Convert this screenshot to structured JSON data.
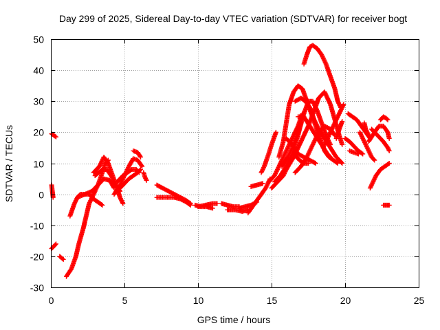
{
  "chart_data": {
    "type": "scatter",
    "title": "Day 299 of 2025, Sidereal Day-to-day VTEC variation (SDTVAR) for receiver bogt",
    "xlabel": "GPS time / hours",
    "ylabel": "SDTVAR / TECUs",
    "xlim": [
      0,
      25
    ],
    "ylim": [
      -30,
      50
    ],
    "xticks": [
      0,
      5,
      10,
      15,
      20,
      25
    ],
    "yticks": [
      -30,
      -20,
      -10,
      0,
      10,
      20,
      30,
      40,
      50
    ],
    "grid": true,
    "marker": "+",
    "color": "#ff0000",
    "tracks": [
      {
        "name": "t01",
        "points": [
          [
            0.05,
            19.5
          ],
          [
            0.35,
            18.5
          ]
        ]
      },
      {
        "name": "t02",
        "points": [
          [
            0.05,
            3
          ],
          [
            0.1,
            1
          ],
          [
            0.15,
            -1
          ]
        ]
      },
      {
        "name": "t03",
        "points": [
          [
            0.05,
            -17.5
          ],
          [
            0.35,
            -16
          ]
        ]
      },
      {
        "name": "t04",
        "points": [
          [
            0.6,
            -20
          ],
          [
            0.85,
            -21
          ]
        ]
      },
      {
        "name": "t05",
        "points": [
          [
            1.05,
            -26.5
          ],
          [
            1.4,
            -24
          ],
          [
            1.7,
            -20
          ],
          [
            1.9,
            -16
          ],
          [
            2.2,
            -11
          ],
          [
            2.4,
            -7
          ],
          [
            2.6,
            -3
          ],
          [
            2.9,
            0
          ],
          [
            3.2,
            3
          ],
          [
            3.5,
            7
          ],
          [
            3.7,
            10
          ],
          [
            3.9,
            11
          ]
        ]
      },
      {
        "name": "t06",
        "points": [
          [
            1.3,
            -7
          ],
          [
            1.6,
            -3
          ],
          [
            1.8,
            -1
          ],
          [
            2.0,
            0
          ],
          [
            2.3,
            0
          ],
          [
            2.6,
            0
          ],
          [
            2.9,
            -1.5
          ],
          [
            3.2,
            -2.5
          ],
          [
            3.5,
            -3.5
          ]
        ]
      },
      {
        "name": "t07",
        "points": [
          [
            1.8,
            -1
          ],
          [
            2.3,
            0
          ],
          [
            2.8,
            1
          ],
          [
            3.2,
            3
          ],
          [
            3.6,
            5
          ],
          [
            4.0,
            4.5
          ],
          [
            4.3,
            2
          ]
        ]
      },
      {
        "name": "t08",
        "points": [
          [
            2.9,
            7
          ],
          [
            3.3,
            9
          ],
          [
            3.6,
            12
          ],
          [
            3.9,
            10
          ],
          [
            4.2,
            6
          ],
          [
            4.5,
            2
          ],
          [
            4.7,
            -1
          ],
          [
            4.9,
            -3
          ]
        ]
      },
      {
        "name": "t09",
        "points": [
          [
            3.0,
            6
          ],
          [
            3.5,
            8
          ],
          [
            3.8,
            8
          ],
          [
            4.1,
            6
          ],
          [
            4.4,
            3
          ],
          [
            4.7,
            1
          ]
        ]
      },
      {
        "name": "t10",
        "points": [
          [
            4.3,
            0
          ],
          [
            4.7,
            3
          ],
          [
            5.0,
            6
          ],
          [
            5.3,
            9
          ],
          [
            5.6,
            11.5
          ],
          [
            5.9,
            11
          ],
          [
            6.2,
            9
          ]
        ]
      },
      {
        "name": "t11",
        "points": [
          [
            4.5,
            4
          ],
          [
            4.9,
            6
          ],
          [
            5.2,
            7
          ],
          [
            5.5,
            8
          ],
          [
            5.8,
            8
          ],
          [
            6.0,
            7
          ]
        ]
      },
      {
        "name": "t12",
        "points": [
          [
            4.7,
            2
          ],
          [
            5.0,
            3.5
          ],
          [
            5.3,
            5
          ],
          [
            5.6,
            6
          ],
          [
            5.9,
            7
          ],
          [
            6.1,
            8
          ]
        ]
      },
      {
        "name": "t13",
        "points": [
          [
            5.6,
            14
          ],
          [
            5.9,
            13.5
          ],
          [
            6.1,
            12
          ]
        ]
      },
      {
        "name": "t14",
        "points": [
          [
            6.3,
            7
          ],
          [
            6.4,
            5.5
          ],
          [
            6.5,
            4.5
          ]
        ]
      },
      {
        "name": "t15",
        "points": [
          [
            7.2,
            3
          ],
          [
            7.6,
            2
          ],
          [
            8.0,
            1
          ],
          [
            8.4,
            0
          ],
          [
            8.8,
            -1
          ],
          [
            9.2,
            -2
          ],
          [
            9.5,
            -3
          ]
        ]
      },
      {
        "name": "t16",
        "points": [
          [
            7.2,
            -1
          ],
          [
            7.6,
            -1
          ],
          [
            8.0,
            -1
          ],
          [
            8.4,
            -1
          ],
          [
            8.8,
            -1.5
          ],
          [
            9.2,
            -2.5
          ],
          [
            9.5,
            -3.5
          ]
        ]
      },
      {
        "name": "t17",
        "points": [
          [
            9.8,
            -3.5
          ],
          [
            10.2,
            -4
          ],
          [
            10.6,
            -4
          ],
          [
            11.0,
            -4.5
          ]
        ]
      },
      {
        "name": "t18",
        "points": [
          [
            10.0,
            -4
          ],
          [
            10.5,
            -3.5
          ],
          [
            11.0,
            -3
          ],
          [
            11.3,
            -3
          ]
        ]
      },
      {
        "name": "t19",
        "points": [
          [
            11.6,
            -3
          ],
          [
            12.0,
            -3.5
          ],
          [
            12.4,
            -4
          ],
          [
            12.8,
            -4
          ]
        ]
      },
      {
        "name": "t20",
        "points": [
          [
            12.0,
            -5
          ],
          [
            12.5,
            -5
          ],
          [
            13.0,
            -5.5
          ],
          [
            13.4,
            -5
          ]
        ]
      },
      {
        "name": "t21",
        "points": [
          [
            12.8,
            -4.5
          ],
          [
            13.2,
            -4
          ],
          [
            13.6,
            -3.5
          ],
          [
            14.0,
            -2.5
          ]
        ]
      },
      {
        "name": "t22",
        "points": [
          [
            13.4,
            -6
          ],
          [
            13.7,
            -4
          ],
          [
            14.0,
            -2
          ],
          [
            14.3,
            0
          ],
          [
            14.6,
            2
          ],
          [
            14.9,
            5
          ]
        ]
      },
      {
        "name": "t23",
        "points": [
          [
            13.6,
            2.5
          ],
          [
            14.0,
            3
          ],
          [
            14.4,
            3.5
          ]
        ]
      },
      {
        "name": "t24",
        "points": [
          [
            14.3,
            7
          ],
          [
            14.5,
            9
          ],
          [
            14.8,
            13
          ],
          [
            15.0,
            16
          ],
          [
            15.3,
            20
          ]
        ]
      },
      {
        "name": "t25",
        "points": [
          [
            14.8,
            4
          ],
          [
            15.2,
            6
          ],
          [
            15.6,
            10
          ],
          [
            16.0,
            14
          ],
          [
            16.4,
            18
          ],
          [
            16.8,
            22
          ],
          [
            17.1,
            26
          ]
        ]
      },
      {
        "name": "t26",
        "points": [
          [
            15.2,
            4
          ],
          [
            15.6,
            6
          ],
          [
            16.0,
            9
          ],
          [
            16.4,
            13
          ],
          [
            16.8,
            19
          ],
          [
            17.0,
            23
          ]
        ]
      },
      {
        "name": "t27",
        "points": [
          [
            15.0,
            2
          ],
          [
            15.4,
            4
          ],
          [
            15.8,
            6
          ],
          [
            16.0,
            8
          ],
          [
            16.5,
            12
          ],
          [
            17.0,
            17
          ],
          [
            17.5,
            22
          ],
          [
            17.9,
            27
          ],
          [
            18.2,
            31
          ],
          [
            18.6,
            33
          ],
          [
            19.0,
            29
          ],
          [
            19.3,
            24
          ],
          [
            19.6,
            19
          ],
          [
            19.8,
            16
          ]
        ]
      },
      {
        "name": "t28",
        "points": [
          [
            15.5,
            12
          ],
          [
            15.8,
            17
          ],
          [
            16.0,
            23
          ],
          [
            16.2,
            29
          ],
          [
            16.5,
            33
          ],
          [
            16.8,
            35
          ],
          [
            17.1,
            34
          ],
          [
            17.4,
            30
          ],
          [
            17.7,
            26
          ],
          [
            18.0,
            22
          ],
          [
            18.3,
            18
          ],
          [
            18.6,
            14
          ],
          [
            18.9,
            12
          ],
          [
            19.2,
            11
          ],
          [
            19.5,
            10
          ]
        ]
      },
      {
        "name": "t29",
        "points": [
          [
            15.7,
            9
          ],
          [
            16.1,
            12
          ],
          [
            16.5,
            16
          ],
          [
            16.9,
            21
          ],
          [
            17.2,
            26
          ],
          [
            17.5,
            30
          ],
          [
            17.8,
            30
          ],
          [
            18.1,
            27
          ],
          [
            18.4,
            23
          ],
          [
            18.7,
            19
          ],
          [
            19.0,
            16
          ]
        ]
      },
      {
        "name": "t30",
        "points": [
          [
            16.0,
            18
          ],
          [
            16.4,
            16
          ],
          [
            16.8,
            13
          ],
          [
            17.2,
            12
          ],
          [
            17.6,
            11
          ],
          [
            18.0,
            10
          ]
        ]
      },
      {
        "name": "t31",
        "points": [
          [
            16.6,
            12.5
          ],
          [
            16.9,
            11
          ],
          [
            17.2,
            10
          ],
          [
            17.5,
            10
          ]
        ]
      },
      {
        "name": "t32",
        "points": [
          [
            16.6,
            30
          ],
          [
            17.0,
            31
          ],
          [
            17.3,
            30
          ],
          [
            17.6,
            28
          ],
          [
            17.9,
            24
          ],
          [
            18.2,
            21
          ],
          [
            18.6,
            18
          ],
          [
            19.0,
            15
          ],
          [
            19.4,
            12
          ],
          [
            19.8,
            10
          ]
        ]
      },
      {
        "name": "t33",
        "points": [
          [
            16.8,
            25
          ],
          [
            17.2,
            25
          ],
          [
            17.6,
            22
          ],
          [
            18.0,
            19
          ],
          [
            18.4,
            16
          ],
          [
            18.8,
            13
          ],
          [
            19.0,
            12
          ]
        ]
      },
      {
        "name": "t34",
        "points": [
          [
            16.6,
            7
          ],
          [
            17.0,
            9
          ],
          [
            17.4,
            12
          ],
          [
            17.8,
            16
          ],
          [
            18.2,
            20
          ],
          [
            18.6,
            22
          ],
          [
            19.0,
            21
          ],
          [
            19.3,
            19
          ]
        ]
      },
      {
        "name": "t35",
        "points": [
          [
            17.2,
            42
          ],
          [
            17.4,
            45
          ],
          [
            17.6,
            47.5
          ],
          [
            17.8,
            48
          ],
          [
            18.1,
            47
          ],
          [
            18.4,
            45
          ],
          [
            18.7,
            42
          ],
          [
            19.0,
            38
          ],
          [
            19.3,
            34
          ],
          [
            19.5,
            30
          ],
          [
            19.7,
            28
          ]
        ]
      },
      {
        "name": "t36",
        "points": [
          [
            18.5,
            15
          ],
          [
            18.8,
            18
          ],
          [
            19.1,
            21
          ],
          [
            19.4,
            24
          ],
          [
            19.7,
            27
          ],
          [
            19.9,
            29
          ]
        ]
      },
      {
        "name": "t37",
        "points": [
          [
            19.4,
            18
          ],
          [
            19.6,
            21
          ],
          [
            19.8,
            23.5
          ]
        ]
      },
      {
        "name": "t38",
        "points": [
          [
            20.2,
            26
          ],
          [
            20.5,
            25
          ],
          [
            20.8,
            24
          ],
          [
            21.1,
            22
          ],
          [
            21.4,
            20
          ],
          [
            21.7,
            18
          ]
        ]
      },
      {
        "name": "t39",
        "points": [
          [
            20.0,
            18
          ],
          [
            20.3,
            17
          ],
          [
            20.6,
            15.5
          ],
          [
            20.9,
            14
          ],
          [
            21.2,
            13
          ]
        ]
      },
      {
        "name": "t40",
        "points": [
          [
            20.3,
            14
          ],
          [
            20.6,
            13.5
          ],
          [
            20.9,
            13
          ]
        ]
      },
      {
        "name": "t41",
        "points": [
          [
            21.0,
            20
          ],
          [
            21.3,
            17
          ],
          [
            21.6,
            14
          ],
          [
            21.8,
            12
          ],
          [
            22.0,
            11
          ]
        ]
      },
      {
        "name": "t42",
        "points": [
          [
            21.6,
            17
          ],
          [
            22.0,
            20
          ],
          [
            22.3,
            22
          ],
          [
            22.6,
            22
          ],
          [
            22.9,
            20
          ],
          [
            23.0,
            18
          ]
        ]
      },
      {
        "name": "t43",
        "points": [
          [
            21.8,
            21
          ],
          [
            22.2,
            19
          ],
          [
            22.6,
            17
          ],
          [
            22.9,
            15
          ],
          [
            23.0,
            14
          ]
        ]
      },
      {
        "name": "t44",
        "points": [
          [
            21.7,
            2
          ],
          [
            21.9,
            4
          ],
          [
            22.1,
            6
          ],
          [
            22.4,
            8
          ],
          [
            22.7,
            9
          ],
          [
            23.0,
            10
          ]
        ]
      },
      {
        "name": "t45",
        "points": [
          [
            22.4,
            24
          ],
          [
            22.6,
            25
          ],
          [
            22.8,
            24.5
          ],
          [
            22.9,
            24
          ]
        ]
      },
      {
        "name": "t46",
        "points": [
          [
            22.6,
            -3.5
          ],
          [
            22.8,
            -3.5
          ],
          [
            23.0,
            -3.5
          ]
        ]
      },
      {
        "name": "t47",
        "points": [
          [
            21.3,
            23
          ],
          [
            21.4,
            21
          ],
          [
            21.6,
            19
          ]
        ]
      }
    ]
  }
}
